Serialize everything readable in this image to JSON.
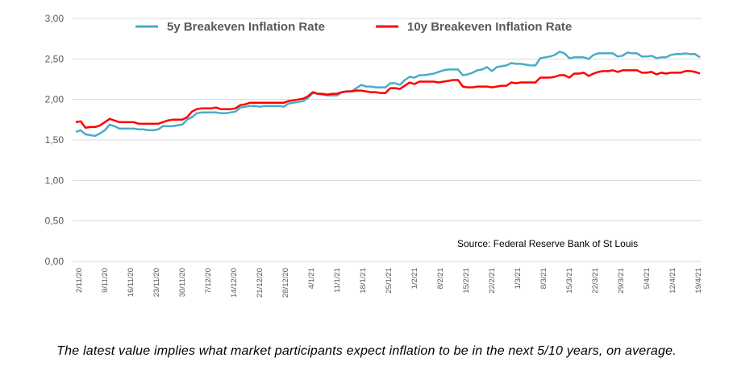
{
  "chart_data": {
    "type": "line",
    "title": "",
    "xlabel": "",
    "ylabel": "",
    "ylim": [
      0,
      3
    ],
    "y_ticks": [
      "0,00",
      "0,50",
      "1,00",
      "1,50",
      "2,00",
      "2,50",
      "3,00"
    ],
    "grid": true,
    "legend_position": "top",
    "x_ticks": [
      "2/11/20",
      "9/11/20",
      "16/11/20",
      "23/11/20",
      "30/11/20",
      "7/12/20",
      "14/12/20",
      "21/12/20",
      "28/12/20",
      "4/1/21",
      "11/1/21",
      "18/1/21",
      "25/1/21",
      "1/2/21",
      "8/2/21",
      "15/2/21",
      "22/2/21",
      "1/3/21",
      "8/3/21",
      "15/3/21",
      "22/3/21",
      "29/3/21",
      "5/4/21",
      "12/4/21",
      "19/4/21"
    ],
    "series": [
      {
        "name": "5y Breakeven Inflation Rate",
        "color": "#4bacc6",
        "values": [
          1.6,
          1.62,
          1.57,
          1.56,
          1.55,
          1.58,
          1.62,
          1.69,
          1.67,
          1.64,
          1.64,
          1.64,
          1.64,
          1.63,
          1.63,
          1.62,
          1.62,
          1.63,
          1.67,
          1.67,
          1.67,
          1.68,
          1.69,
          1.75,
          1.78,
          1.83,
          1.84,
          1.84,
          1.84,
          1.84,
          1.83,
          1.83,
          1.84,
          1.85,
          1.9,
          1.91,
          1.92,
          1.92,
          1.91,
          1.92,
          1.92,
          1.92,
          1.92,
          1.91,
          1.95,
          1.96,
          1.97,
          1.98,
          2.02,
          2.08,
          2.07,
          2.06,
          2.05,
          2.05,
          2.05,
          2.09,
          2.1,
          2.1,
          2.14,
          2.18,
          2.16,
          2.16,
          2.15,
          2.15,
          2.15,
          2.2,
          2.2,
          2.18,
          2.24,
          2.28,
          2.27,
          2.3,
          2.3,
          2.31,
          2.32,
          2.34,
          2.36,
          2.37,
          2.37,
          2.37,
          2.3,
          2.31,
          2.33,
          2.36,
          2.37,
          2.4,
          2.35,
          2.4,
          2.41,
          2.42,
          2.45,
          2.44,
          2.44,
          2.43,
          2.42,
          2.42,
          2.51,
          2.52,
          2.53,
          2.55,
          2.59,
          2.57,
          2.51,
          2.52,
          2.52,
          2.52,
          2.5,
          2.55,
          2.57,
          2.57,
          2.57,
          2.57,
          2.53,
          2.54,
          2.58,
          2.57,
          2.57,
          2.53,
          2.53,
          2.54,
          2.51,
          2.52,
          2.52,
          2.55,
          2.56,
          2.56,
          2.57,
          2.56,
          2.56,
          2.52
        ]
      },
      {
        "name": "10y Breakeven Inflation Rate",
        "color": "#ff0000",
        "values": [
          1.72,
          1.73,
          1.65,
          1.66,
          1.66,
          1.68,
          1.72,
          1.76,
          1.74,
          1.72,
          1.72,
          1.72,
          1.72,
          1.7,
          1.7,
          1.7,
          1.7,
          1.7,
          1.72,
          1.74,
          1.75,
          1.75,
          1.75,
          1.78,
          1.85,
          1.88,
          1.89,
          1.89,
          1.89,
          1.9,
          1.88,
          1.88,
          1.88,
          1.89,
          1.93,
          1.94,
          1.96,
          1.96,
          1.96,
          1.96,
          1.96,
          1.96,
          1.96,
          1.96,
          1.98,
          1.99,
          2.0,
          2.01,
          2.04,
          2.09,
          2.07,
          2.07,
          2.06,
          2.07,
          2.07,
          2.09,
          2.1,
          2.1,
          2.11,
          2.11,
          2.1,
          2.09,
          2.09,
          2.08,
          2.08,
          2.14,
          2.14,
          2.13,
          2.17,
          2.21,
          2.19,
          2.22,
          2.22,
          2.22,
          2.22,
          2.21,
          2.22,
          2.23,
          2.24,
          2.24,
          2.16,
          2.15,
          2.15,
          2.16,
          2.16,
          2.16,
          2.15,
          2.16,
          2.17,
          2.17,
          2.21,
          2.2,
          2.21,
          2.21,
          2.21,
          2.21,
          2.27,
          2.27,
          2.27,
          2.28,
          2.3,
          2.3,
          2.27,
          2.32,
          2.32,
          2.33,
          2.29,
          2.32,
          2.34,
          2.35,
          2.35,
          2.36,
          2.34,
          2.36,
          2.36,
          2.36,
          2.36,
          2.33,
          2.33,
          2.34,
          2.31,
          2.33,
          2.32,
          2.33,
          2.33,
          2.33,
          2.35,
          2.35,
          2.34,
          2.32
        ]
      }
    ],
    "annotation": "Source:  Federal Reserve Bank of St Louis"
  },
  "caption": "The latest value implies what market participants expect inflation to be in the next 5/10 years, on average."
}
